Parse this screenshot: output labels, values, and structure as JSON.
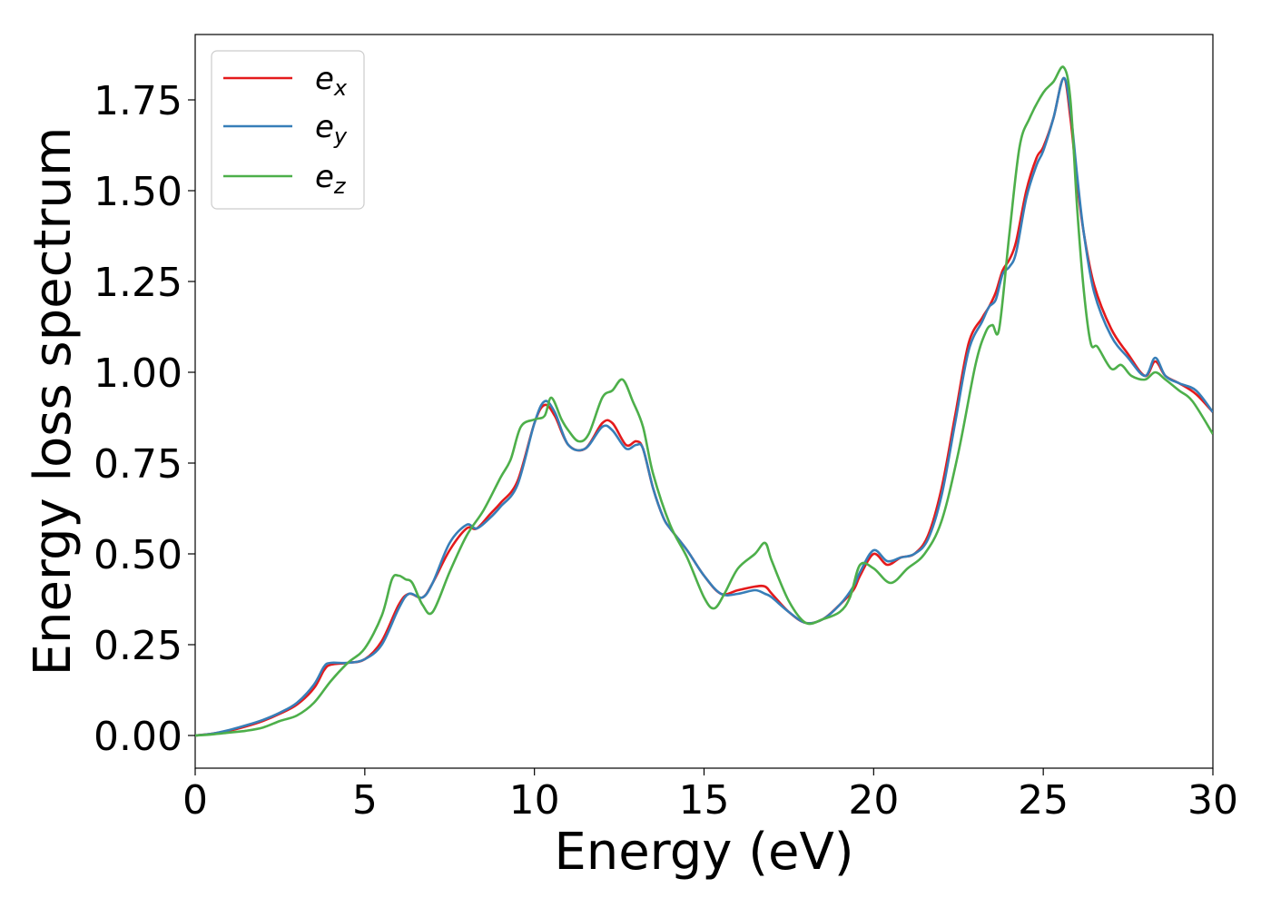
{
  "chart_data": {
    "type": "line",
    "xlabel": "Energy (eV)",
    "ylabel": "Energy loss spectrum",
    "xlim": [
      0,
      30
    ],
    "ylim": [
      -0.09,
      1.93
    ],
    "xticks": [
      "0",
      "5",
      "10",
      "15",
      "20",
      "25",
      "30"
    ],
    "yticks": [
      "0.00",
      "0.25",
      "0.50",
      "0.75",
      "1.00",
      "1.25",
      "1.50",
      "1.75"
    ],
    "grid": false,
    "legend_position": "top-left",
    "series": [
      {
        "name": "e_x",
        "label_base": "e",
        "label_sub": "x",
        "color": "#e41a1c",
        "x": [
          0,
          0.5,
          1,
          1.5,
          2,
          2.5,
          3,
          3.5,
          3.8,
          4,
          4.5,
          5,
          5.5,
          6,
          6.3,
          6.7,
          7,
          7.5,
          8,
          8.3,
          8.7,
          9,
          9.5,
          10,
          10.3,
          10.6,
          11,
          11.5,
          12,
          12.3,
          12.7,
          13,
          13.2,
          13.5,
          13.8,
          14,
          14.5,
          15,
          15.5,
          16,
          16.5,
          16.8,
          17,
          17.5,
          18,
          18.5,
          19,
          19.4,
          19.6,
          20,
          20.4,
          20.8,
          21.2,
          21.6,
          22,
          22.4,
          22.8,
          23.2,
          23.4,
          23.6,
          23.8,
          24,
          24.2,
          24.5,
          24.8,
          25,
          25.3,
          25.6,
          25.8,
          26,
          26.2,
          26.5,
          27,
          27.5,
          28,
          28.3,
          28.6,
          29,
          29.5,
          30
        ],
        "y": [
          0,
          0.005,
          0.013,
          0.025,
          0.04,
          0.06,
          0.085,
          0.13,
          0.18,
          0.195,
          0.2,
          0.21,
          0.26,
          0.36,
          0.39,
          0.38,
          0.42,
          0.51,
          0.57,
          0.57,
          0.61,
          0.64,
          0.7,
          0.86,
          0.91,
          0.88,
          0.8,
          0.79,
          0.86,
          0.86,
          0.8,
          0.81,
          0.79,
          0.68,
          0.6,
          0.57,
          0.51,
          0.44,
          0.39,
          0.4,
          0.41,
          0.41,
          0.39,
          0.34,
          0.31,
          0.32,
          0.36,
          0.4,
          0.44,
          0.5,
          0.47,
          0.49,
          0.5,
          0.55,
          0.68,
          0.88,
          1.08,
          1.15,
          1.18,
          1.22,
          1.28,
          1.31,
          1.36,
          1.5,
          1.59,
          1.62,
          1.7,
          1.81,
          1.7,
          1.52,
          1.38,
          1.24,
          1.12,
          1.05,
          0.99,
          1.03,
          0.99,
          0.97,
          0.94,
          0.89
        ]
      },
      {
        "name": "e_y",
        "label_base": "e",
        "label_sub": "y",
        "color": "#377eb8",
        "x": [
          0,
          0.5,
          1,
          1.5,
          2,
          2.5,
          3,
          3.5,
          3.8,
          4,
          4.5,
          5,
          5.5,
          6,
          6.3,
          6.7,
          7,
          7.5,
          8,
          8.3,
          8.7,
          9,
          9.5,
          10,
          10.3,
          10.6,
          11,
          11.5,
          12,
          12.3,
          12.7,
          13,
          13.2,
          13.5,
          13.8,
          14,
          14.5,
          15,
          15.5,
          16,
          16.5,
          16.8,
          17,
          17.5,
          18,
          18.5,
          19,
          19.4,
          19.6,
          20,
          20.4,
          20.8,
          21.2,
          21.6,
          22,
          22.4,
          22.8,
          23.2,
          23.4,
          23.6,
          23.8,
          24,
          24.2,
          24.5,
          24.8,
          25,
          25.3,
          25.6,
          25.8,
          26,
          26.2,
          26.5,
          27,
          27.5,
          28,
          28.3,
          28.6,
          29,
          29.5,
          30
        ],
        "y": [
          0,
          0.005,
          0.015,
          0.028,
          0.043,
          0.063,
          0.09,
          0.14,
          0.19,
          0.2,
          0.2,
          0.21,
          0.25,
          0.35,
          0.39,
          0.38,
          0.42,
          0.53,
          0.58,
          0.57,
          0.6,
          0.63,
          0.69,
          0.86,
          0.92,
          0.89,
          0.8,
          0.79,
          0.85,
          0.84,
          0.79,
          0.8,
          0.79,
          0.68,
          0.6,
          0.57,
          0.51,
          0.44,
          0.39,
          0.39,
          0.4,
          0.39,
          0.38,
          0.34,
          0.31,
          0.32,
          0.36,
          0.41,
          0.45,
          0.51,
          0.48,
          0.49,
          0.5,
          0.54,
          0.66,
          0.86,
          1.06,
          1.14,
          1.18,
          1.2,
          1.27,
          1.29,
          1.33,
          1.48,
          1.57,
          1.61,
          1.7,
          1.81,
          1.72,
          1.54,
          1.38,
          1.22,
          1.1,
          1.04,
          0.99,
          1.04,
          0.99,
          0.97,
          0.95,
          0.89
        ]
      },
      {
        "name": "e_z",
        "label_base": "e",
        "label_sub": "z",
        "color": "#4daf4a",
        "x": [
          0,
          0.5,
          1,
          1.5,
          2,
          2.5,
          3,
          3.5,
          4,
          4.5,
          5,
          5.5,
          5.8,
          6,
          6.2,
          6.4,
          6.7,
          7,
          7.5,
          8,
          8.5,
          9,
          9.3,
          9.6,
          10,
          10.3,
          10.5,
          10.8,
          11,
          11.3,
          11.6,
          12,
          12.3,
          12.6,
          12.9,
          13.2,
          13.5,
          14,
          14.5,
          15,
          15.3,
          15.6,
          16,
          16.5,
          16.8,
          17,
          17.5,
          18,
          18.5,
          19,
          19.3,
          19.6,
          20,
          20.5,
          21,
          21.5,
          22,
          22.5,
          23,
          23.3,
          23.5,
          23.7,
          24,
          24.3,
          24.6,
          25,
          25.3,
          25.6,
          25.8,
          26,
          26.2,
          26.4,
          26.6,
          27,
          27.3,
          27.6,
          28,
          28.3,
          28.6,
          29,
          29.4,
          30
        ],
        "y": [
          0,
          0.003,
          0.008,
          0.013,
          0.022,
          0.04,
          0.055,
          0.09,
          0.15,
          0.2,
          0.24,
          0.33,
          0.43,
          0.44,
          0.43,
          0.42,
          0.36,
          0.34,
          0.45,
          0.55,
          0.62,
          0.71,
          0.76,
          0.85,
          0.87,
          0.88,
          0.93,
          0.87,
          0.84,
          0.81,
          0.83,
          0.93,
          0.95,
          0.98,
          0.92,
          0.85,
          0.72,
          0.58,
          0.49,
          0.38,
          0.35,
          0.39,
          0.46,
          0.5,
          0.53,
          0.48,
          0.37,
          0.31,
          0.32,
          0.34,
          0.38,
          0.47,
          0.46,
          0.42,
          0.46,
          0.5,
          0.59,
          0.78,
          1.02,
          1.11,
          1.13,
          1.12,
          1.38,
          1.62,
          1.7,
          1.77,
          1.8,
          1.84,
          1.75,
          1.45,
          1.22,
          1.08,
          1.07,
          1.01,
          1.02,
          0.99,
          0.98,
          1.0,
          0.98,
          0.95,
          0.92,
          0.83
        ]
      }
    ]
  }
}
